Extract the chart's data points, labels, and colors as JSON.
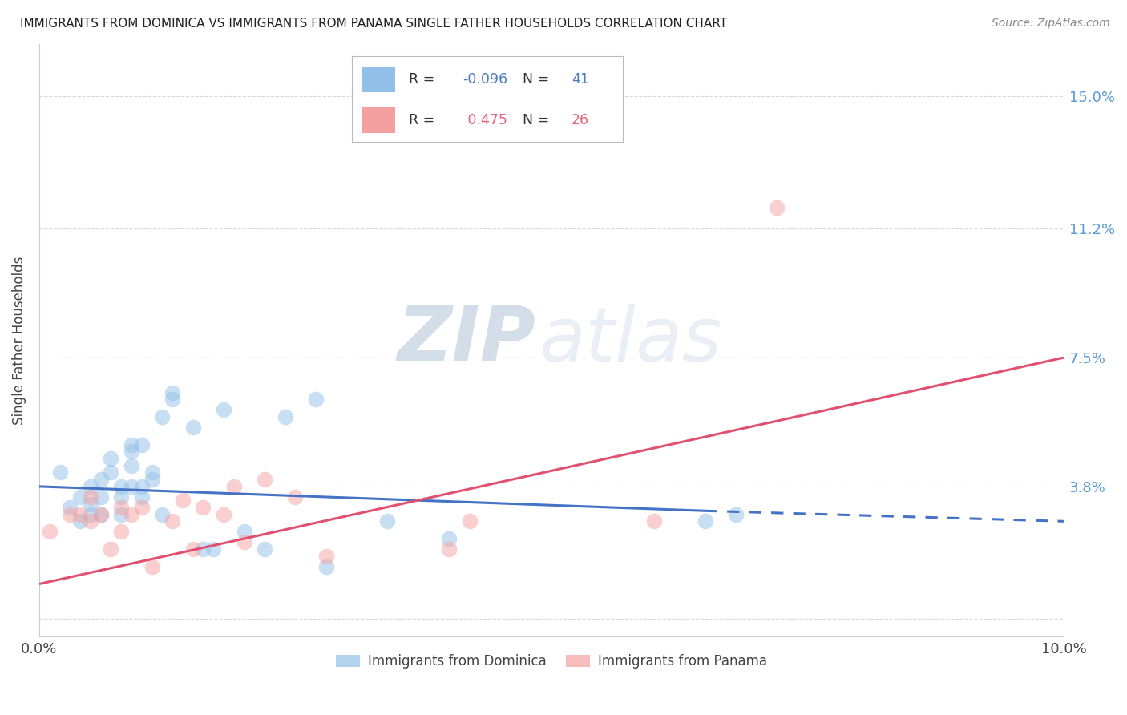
{
  "title": "IMMIGRANTS FROM DOMINICA VS IMMIGRANTS FROM PANAMA SINGLE FATHER HOUSEHOLDS CORRELATION CHART",
  "source": "Source: ZipAtlas.com",
  "ylabel": "Single Father Households",
  "xlim": [
    0.0,
    0.1
  ],
  "ylim": [
    -0.005,
    0.165
  ],
  "yticks": [
    0.0,
    0.038,
    0.075,
    0.112,
    0.15
  ],
  "ytick_labels": [
    "",
    "3.8%",
    "7.5%",
    "11.2%",
    "15.0%"
  ],
  "xticks": [
    0.0,
    0.02,
    0.04,
    0.06,
    0.08,
    0.1
  ],
  "xtick_labels": [
    "0.0%",
    "",
    "",
    "",
    "",
    "10.0%"
  ],
  "dominica_R": "-0.096",
  "dominica_N": "41",
  "panama_R": "0.475",
  "panama_N": "26",
  "blue_color": "#92C0E8",
  "pink_color": "#F4A0A0",
  "dominica_scatter_x": [
    0.002,
    0.003,
    0.004,
    0.004,
    0.005,
    0.005,
    0.005,
    0.006,
    0.006,
    0.006,
    0.007,
    0.007,
    0.008,
    0.008,
    0.008,
    0.009,
    0.009,
    0.009,
    0.009,
    0.01,
    0.01,
    0.01,
    0.011,
    0.011,
    0.012,
    0.012,
    0.013,
    0.013,
    0.015,
    0.016,
    0.017,
    0.018,
    0.02,
    0.022,
    0.024,
    0.027,
    0.028,
    0.034,
    0.04,
    0.065,
    0.068
  ],
  "dominica_scatter_y": [
    0.042,
    0.032,
    0.028,
    0.035,
    0.033,
    0.03,
    0.038,
    0.035,
    0.04,
    0.03,
    0.042,
    0.046,
    0.035,
    0.03,
    0.038,
    0.05,
    0.048,
    0.044,
    0.038,
    0.035,
    0.038,
    0.05,
    0.04,
    0.042,
    0.03,
    0.058,
    0.065,
    0.063,
    0.055,
    0.02,
    0.02,
    0.06,
    0.025,
    0.02,
    0.058,
    0.063,
    0.015,
    0.028,
    0.023,
    0.028,
    0.03
  ],
  "panama_scatter_x": [
    0.001,
    0.003,
    0.004,
    0.005,
    0.005,
    0.006,
    0.007,
    0.008,
    0.008,
    0.009,
    0.01,
    0.011,
    0.013,
    0.014,
    0.015,
    0.016,
    0.018,
    0.019,
    0.02,
    0.022,
    0.025,
    0.028,
    0.04,
    0.042,
    0.06,
    0.072
  ],
  "panama_scatter_y": [
    0.025,
    0.03,
    0.03,
    0.028,
    0.035,
    0.03,
    0.02,
    0.025,
    0.032,
    0.03,
    0.032,
    0.015,
    0.028,
    0.034,
    0.02,
    0.032,
    0.03,
    0.038,
    0.022,
    0.04,
    0.035,
    0.018,
    0.02,
    0.028,
    0.028,
    0.118
  ],
  "dominica_line_x0": 0.0,
  "dominica_line_x1": 0.065,
  "dominica_line_x2": 0.1,
  "dominica_line_y0": 0.038,
  "dominica_line_y1": 0.031,
  "dominica_line_y2": 0.028,
  "panama_line_x0": 0.0,
  "panama_line_x1": 0.1,
  "panama_line_y0": 0.01,
  "panama_line_y1": 0.075,
  "watermark_zip": "ZIP",
  "watermark_atlas": "atlas",
  "background_color": "#ffffff",
  "legend_blue_text_color": "#4B7BBE",
  "legend_pink_text_color": "#E8607A",
  "tick_label_color": "#5B9BD5",
  "axis_label_color": "#444444",
  "grid_color": "#d8d8d8",
  "trend_blue": "#4472C4",
  "trend_pink": "#E05070"
}
